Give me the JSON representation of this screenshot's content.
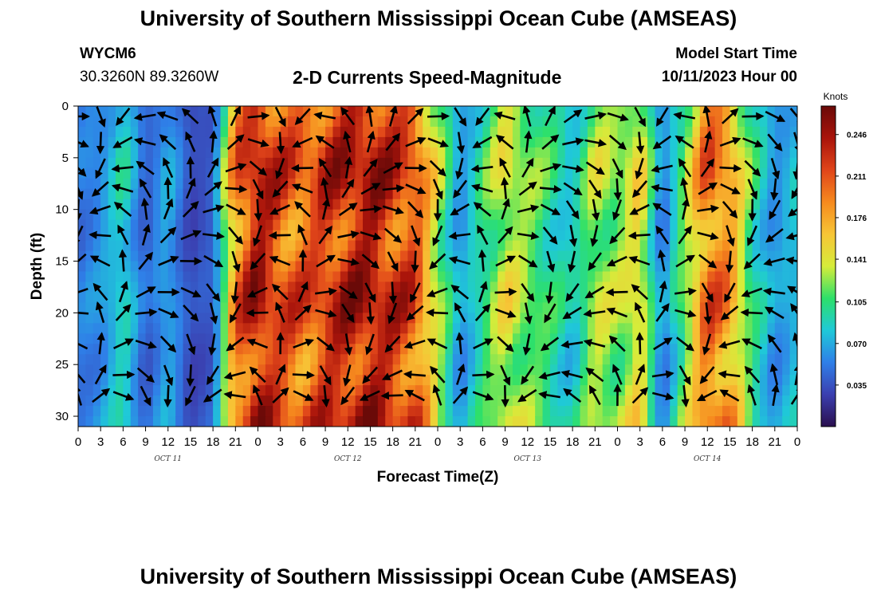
{
  "header": {
    "title": "University of Southern Mississippi Ocean Cube (AMSEAS)",
    "station_id": "WYCM6",
    "station_coords": "30.3260N  89.3260W",
    "product": "2-D Currents Speed-Magnitude",
    "start_label": "Model Start Time",
    "start_value": "10/11/2023 Hour 00"
  },
  "footer": {
    "title": "University of Southern Mississippi Ocean Cube (AMSEAS)"
  },
  "colors": {
    "scale": [
      "#2a0f4e",
      "#3b3fb0",
      "#2f7fe8",
      "#1fc9d8",
      "#2de06a",
      "#d6ec3a",
      "#f7c536",
      "#f68a1e",
      "#e0451a",
      "#a9140b",
      "#6a0a08"
    ]
  },
  "chart_data": {
    "type": "heatmap",
    "xlabel": "Forecast Time(Z)",
    "ylabel": "Depth (ft)",
    "xlim": [
      0,
      96
    ],
    "ylim": [
      0,
      31
    ],
    "x_tick_values": [
      0,
      3,
      6,
      9,
      12,
      15,
      18,
      21,
      24,
      27,
      30,
      33,
      36,
      39,
      42,
      45,
      48,
      51,
      54,
      57,
      60,
      63,
      66,
      69,
      72,
      75,
      78,
      81,
      84,
      87,
      90,
      93,
      96
    ],
    "x_tick_labels": [
      "0",
      "3",
      "6",
      "9",
      "12",
      "15",
      "18",
      "21",
      "0",
      "3",
      "6",
      "9",
      "12",
      "15",
      "18",
      "21",
      "0",
      "3",
      "6",
      "9",
      "12",
      "15",
      "18",
      "21",
      "0",
      "3",
      "6",
      "9",
      "12",
      "15",
      "18",
      "21",
      "0"
    ],
    "y_ticks": [
      0,
      5,
      10,
      15,
      20,
      25,
      30
    ],
    "day_labels": [
      {
        "x": 12,
        "label": "OCT 11"
      },
      {
        "x": 36,
        "label": "OCT 12"
      },
      {
        "x": 60,
        "label": "OCT 13"
      },
      {
        "x": 84,
        "label": "OCT 14"
      }
    ],
    "colorbar": {
      "unit": "Knots",
      "min": 0.0,
      "max": 0.27,
      "ticks": [
        0.035,
        0.07,
        0.105,
        0.141,
        0.176,
        0.211,
        0.246
      ],
      "tick_labels": [
        "0.035",
        "0.070",
        "0.105",
        "0.141",
        "0.176",
        "0.211",
        "0.246"
      ]
    },
    "speed_profile": {
      "x": [
        0,
        3,
        6,
        9,
        12,
        15,
        18,
        21,
        24,
        27,
        30,
        33,
        36,
        39,
        42,
        45,
        48,
        51,
        54,
        57,
        60,
        63,
        66,
        69,
        72,
        75,
        78,
        81,
        84,
        87,
        90,
        93,
        96
      ],
      "values": [
        0.05,
        0.06,
        0.09,
        0.04,
        0.07,
        0.03,
        0.04,
        0.19,
        0.24,
        0.21,
        0.2,
        0.22,
        0.23,
        0.24,
        0.22,
        0.21,
        0.13,
        0.06,
        0.1,
        0.14,
        0.12,
        0.1,
        0.08,
        0.13,
        0.12,
        0.15,
        0.05,
        0.12,
        0.2,
        0.18,
        0.1,
        0.06,
        0.08
      ]
    },
    "vector_x": [
      0,
      3,
      6,
      9,
      12,
      15,
      18,
      21,
      24,
      27,
      30,
      33,
      36,
      39,
      42,
      45,
      48,
      51,
      54,
      57,
      60,
      63,
      66,
      69,
      72,
      75,
      78,
      81,
      84,
      87,
      90,
      93,
      96
    ],
    "vector_depths": [
      1,
      3.5,
      6,
      8,
      10,
      12.5,
      15,
      18,
      20,
      23,
      26,
      28
    ]
  }
}
